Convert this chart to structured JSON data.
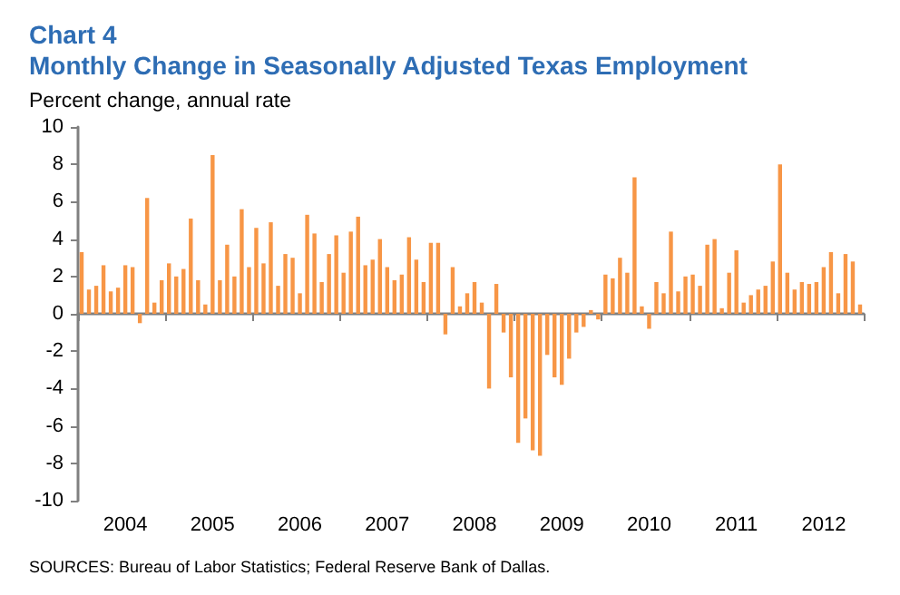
{
  "chart_data": {
    "type": "bar",
    "title": "Chart 4",
    "subtitle": "Monthly Change in Seasonally Adjusted Texas Employment",
    "ylabel": "Percent change, annual rate",
    "annotations": [
      "SOURCES: Bureau of Labor Statistics; Federal Reserve Bank of Dallas."
    ],
    "categories": [
      null,
      null,
      null,
      null,
      null,
      null,
      "2004",
      null,
      null,
      null,
      null,
      null,
      null,
      null,
      null,
      null,
      null,
      null,
      "2005",
      null,
      null,
      null,
      null,
      null,
      null,
      null,
      null,
      null,
      null,
      null,
      "2006",
      null,
      null,
      null,
      null,
      null,
      null,
      null,
      null,
      null,
      null,
      null,
      "2007",
      null,
      null,
      null,
      null,
      null,
      null,
      null,
      null,
      null,
      null,
      null,
      "2008",
      null,
      null,
      null,
      null,
      null,
      null,
      null,
      null,
      null,
      null,
      null,
      "2009",
      null,
      null,
      null,
      null,
      null,
      null,
      null,
      null,
      null,
      null,
      null,
      "2010",
      null,
      null,
      null,
      null,
      null,
      null,
      null,
      null,
      null,
      null,
      null,
      "2011",
      null,
      null,
      null,
      null,
      null,
      null,
      null,
      null,
      null,
      null,
      null,
      "2012",
      null,
      null,
      null,
      null,
      null
    ],
    "values": [
      3.3,
      1.3,
      1.5,
      2.6,
      1.2,
      1.4,
      2.6,
      2.5,
      -0.5,
      6.2,
      0.6,
      1.8,
      2.7,
      2.0,
      2.4,
      5.1,
      1.8,
      0.5,
      8.5,
      1.8,
      3.7,
      2.0,
      5.6,
      2.5,
      4.6,
      2.7,
      4.9,
      1.5,
      3.2,
      3.0,
      1.1,
      5.3,
      4.3,
      1.7,
      3.2,
      4.2,
      2.2,
      4.4,
      5.2,
      2.6,
      2.9,
      4.0,
      2.5,
      1.8,
      2.1,
      4.1,
      2.9,
      1.7,
      3.8,
      3.8,
      -1.1,
      2.5,
      0.4,
      1.1,
      1.7,
      0.6,
      -4.0,
      1.6,
      -1.0,
      -3.4,
      -6.9,
      -5.6,
      -7.3,
      -7.6,
      -2.2,
      -3.4,
      -3.8,
      -2.4,
      -1.0,
      -0.7,
      0.2,
      -0.3,
      2.1,
      1.9,
      3.0,
      2.2,
      7.3,
      0.4,
      -0.8,
      1.7,
      1.1,
      4.4,
      1.2,
      2.0,
      2.1,
      1.5,
      3.7,
      4.0,
      0.3,
      2.2,
      3.4,
      0.6,
      1.0,
      1.3,
      1.5,
      2.8,
      8.0,
      2.2,
      1.3,
      1.7,
      1.6,
      1.7,
      2.5,
      3.3,
      1.1,
      3.2,
      2.8,
      0.5
    ],
    "color": "#f79646",
    "ylim": [
      -10,
      10
    ],
    "yticks": [
      -10,
      -8,
      -6,
      -4,
      -2,
      0,
      2,
      4,
      6,
      8,
      10
    ]
  }
}
